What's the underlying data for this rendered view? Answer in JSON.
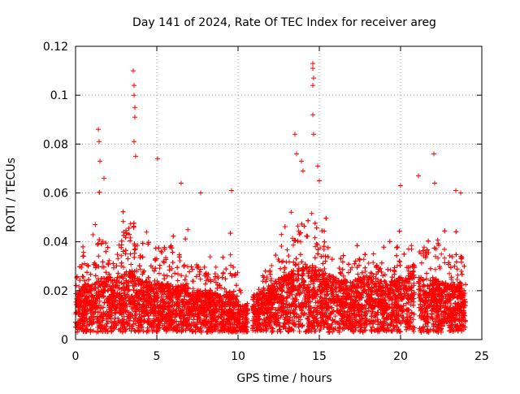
{
  "chart_data": {
    "type": "scatter",
    "title": "Day 141 of 2024, Rate Of TEC Index for receiver areg",
    "xlabel": "GPS time / hours",
    "ylabel": "ROTI / TECUs",
    "xlim": [
      0,
      25
    ],
    "ylim": [
      0,
      0.12
    ],
    "xticks": [
      0,
      5,
      10,
      15,
      20,
      25
    ],
    "xtick_labels": [
      "0",
      "5",
      "10",
      "15",
      "20",
      "25"
    ],
    "yticks": [
      0,
      0.02,
      0.04,
      0.06,
      0.08,
      0.1,
      0.12
    ],
    "ytick_labels": [
      "0",
      "0.02",
      "0.04",
      "0.06",
      "0.08",
      "0.1",
      "0.12"
    ],
    "grid": true,
    "marker": "+",
    "marker_color": "#ff0000",
    "series": [
      {
        "name": "ROTI",
        "color": "#ff0000",
        "gaps_hours": [
          [
            10.6,
            10.9
          ],
          [
            20.85,
            21.1
          ]
        ],
        "profile": [
          {
            "x": 0.0,
            "base": 0.012,
            "peak": 0.035
          },
          {
            "x": 0.5,
            "base": 0.014,
            "peak": 0.045
          },
          {
            "x": 1.0,
            "base": 0.014,
            "peak": 0.04
          },
          {
            "x": 1.5,
            "base": 0.016,
            "peak": 0.065
          },
          {
            "x": 2.0,
            "base": 0.016,
            "peak": 0.05
          },
          {
            "x": 2.5,
            "base": 0.016,
            "peak": 0.045
          },
          {
            "x": 3.0,
            "base": 0.017,
            "peak": 0.06
          },
          {
            "x": 3.5,
            "base": 0.018,
            "peak": 0.065
          },
          {
            "x": 4.0,
            "base": 0.016,
            "peak": 0.05
          },
          {
            "x": 4.5,
            "base": 0.015,
            "peak": 0.045
          },
          {
            "x": 5.0,
            "base": 0.015,
            "peak": 0.05
          },
          {
            "x": 6.0,
            "base": 0.015,
            "peak": 0.05
          },
          {
            "x": 7.0,
            "base": 0.013,
            "peak": 0.045
          },
          {
            "x": 8.0,
            "base": 0.012,
            "peak": 0.035
          },
          {
            "x": 9.0,
            "base": 0.011,
            "peak": 0.035
          },
          {
            "x": 9.5,
            "base": 0.012,
            "peak": 0.05
          },
          {
            "x": 10.0,
            "base": 0.009,
            "peak": 0.03
          },
          {
            "x": 10.5,
            "base": 0.008,
            "peak": 0.02
          },
          {
            "x": 11.0,
            "base": 0.011,
            "peak": 0.025
          },
          {
            "x": 12.0,
            "base": 0.014,
            "peak": 0.04
          },
          {
            "x": 13.0,
            "base": 0.017,
            "peak": 0.05
          },
          {
            "x": 14.0,
            "base": 0.02,
            "peak": 0.065
          },
          {
            "x": 14.5,
            "base": 0.02,
            "peak": 0.07
          },
          {
            "x": 15.0,
            "base": 0.018,
            "peak": 0.055
          },
          {
            "x": 16.0,
            "base": 0.016,
            "peak": 0.045
          },
          {
            "x": 17.0,
            "base": 0.015,
            "peak": 0.04
          },
          {
            "x": 18.0,
            "base": 0.017,
            "peak": 0.045
          },
          {
            "x": 19.0,
            "base": 0.015,
            "peak": 0.04
          },
          {
            "x": 20.0,
            "base": 0.016,
            "peak": 0.045
          },
          {
            "x": 20.8,
            "base": 0.018,
            "peak": 0.05
          },
          {
            "x": 21.2,
            "base": 0.016,
            "peak": 0.05
          },
          {
            "x": 22.0,
            "base": 0.016,
            "peak": 0.055
          },
          {
            "x": 23.0,
            "base": 0.014,
            "peak": 0.045
          },
          {
            "x": 23.7,
            "base": 0.014,
            "peak": 0.045
          },
          {
            "x": 24.0,
            "base": 0.013,
            "peak": 0.04
          }
        ],
        "outliers": [
          {
            "x": 1.4,
            "y": 0.086
          },
          {
            "x": 1.45,
            "y": 0.081
          },
          {
            "x": 1.5,
            "y": 0.073
          },
          {
            "x": 1.75,
            "y": 0.066
          },
          {
            "x": 3.55,
            "y": 0.11
          },
          {
            "x": 3.6,
            "y": 0.104
          },
          {
            "x": 3.6,
            "y": 0.1
          },
          {
            "x": 3.65,
            "y": 0.095
          },
          {
            "x": 3.65,
            "y": 0.091
          },
          {
            "x": 3.6,
            "y": 0.081
          },
          {
            "x": 3.7,
            "y": 0.075
          },
          {
            "x": 5.05,
            "y": 0.074
          },
          {
            "x": 6.5,
            "y": 0.064
          },
          {
            "x": 7.7,
            "y": 0.06
          },
          {
            "x": 9.6,
            "y": 0.061
          },
          {
            "x": 13.5,
            "y": 0.084
          },
          {
            "x": 13.6,
            "y": 0.076
          },
          {
            "x": 13.9,
            "y": 0.073
          },
          {
            "x": 14.0,
            "y": 0.069
          },
          {
            "x": 14.6,
            "y": 0.113
          },
          {
            "x": 14.6,
            "y": 0.111
          },
          {
            "x": 14.65,
            "y": 0.107
          },
          {
            "x": 14.6,
            "y": 0.104
          },
          {
            "x": 14.6,
            "y": 0.092
          },
          {
            "x": 14.65,
            "y": 0.084
          },
          {
            "x": 14.9,
            "y": 0.071
          },
          {
            "x": 15.0,
            "y": 0.065
          },
          {
            "x": 20.0,
            "y": 0.063
          },
          {
            "x": 21.1,
            "y": 0.067
          },
          {
            "x": 22.05,
            "y": 0.076
          },
          {
            "x": 22.1,
            "y": 0.064
          },
          {
            "x": 23.4,
            "y": 0.061
          },
          {
            "x": 23.7,
            "y": 0.06
          }
        ]
      }
    ]
  }
}
